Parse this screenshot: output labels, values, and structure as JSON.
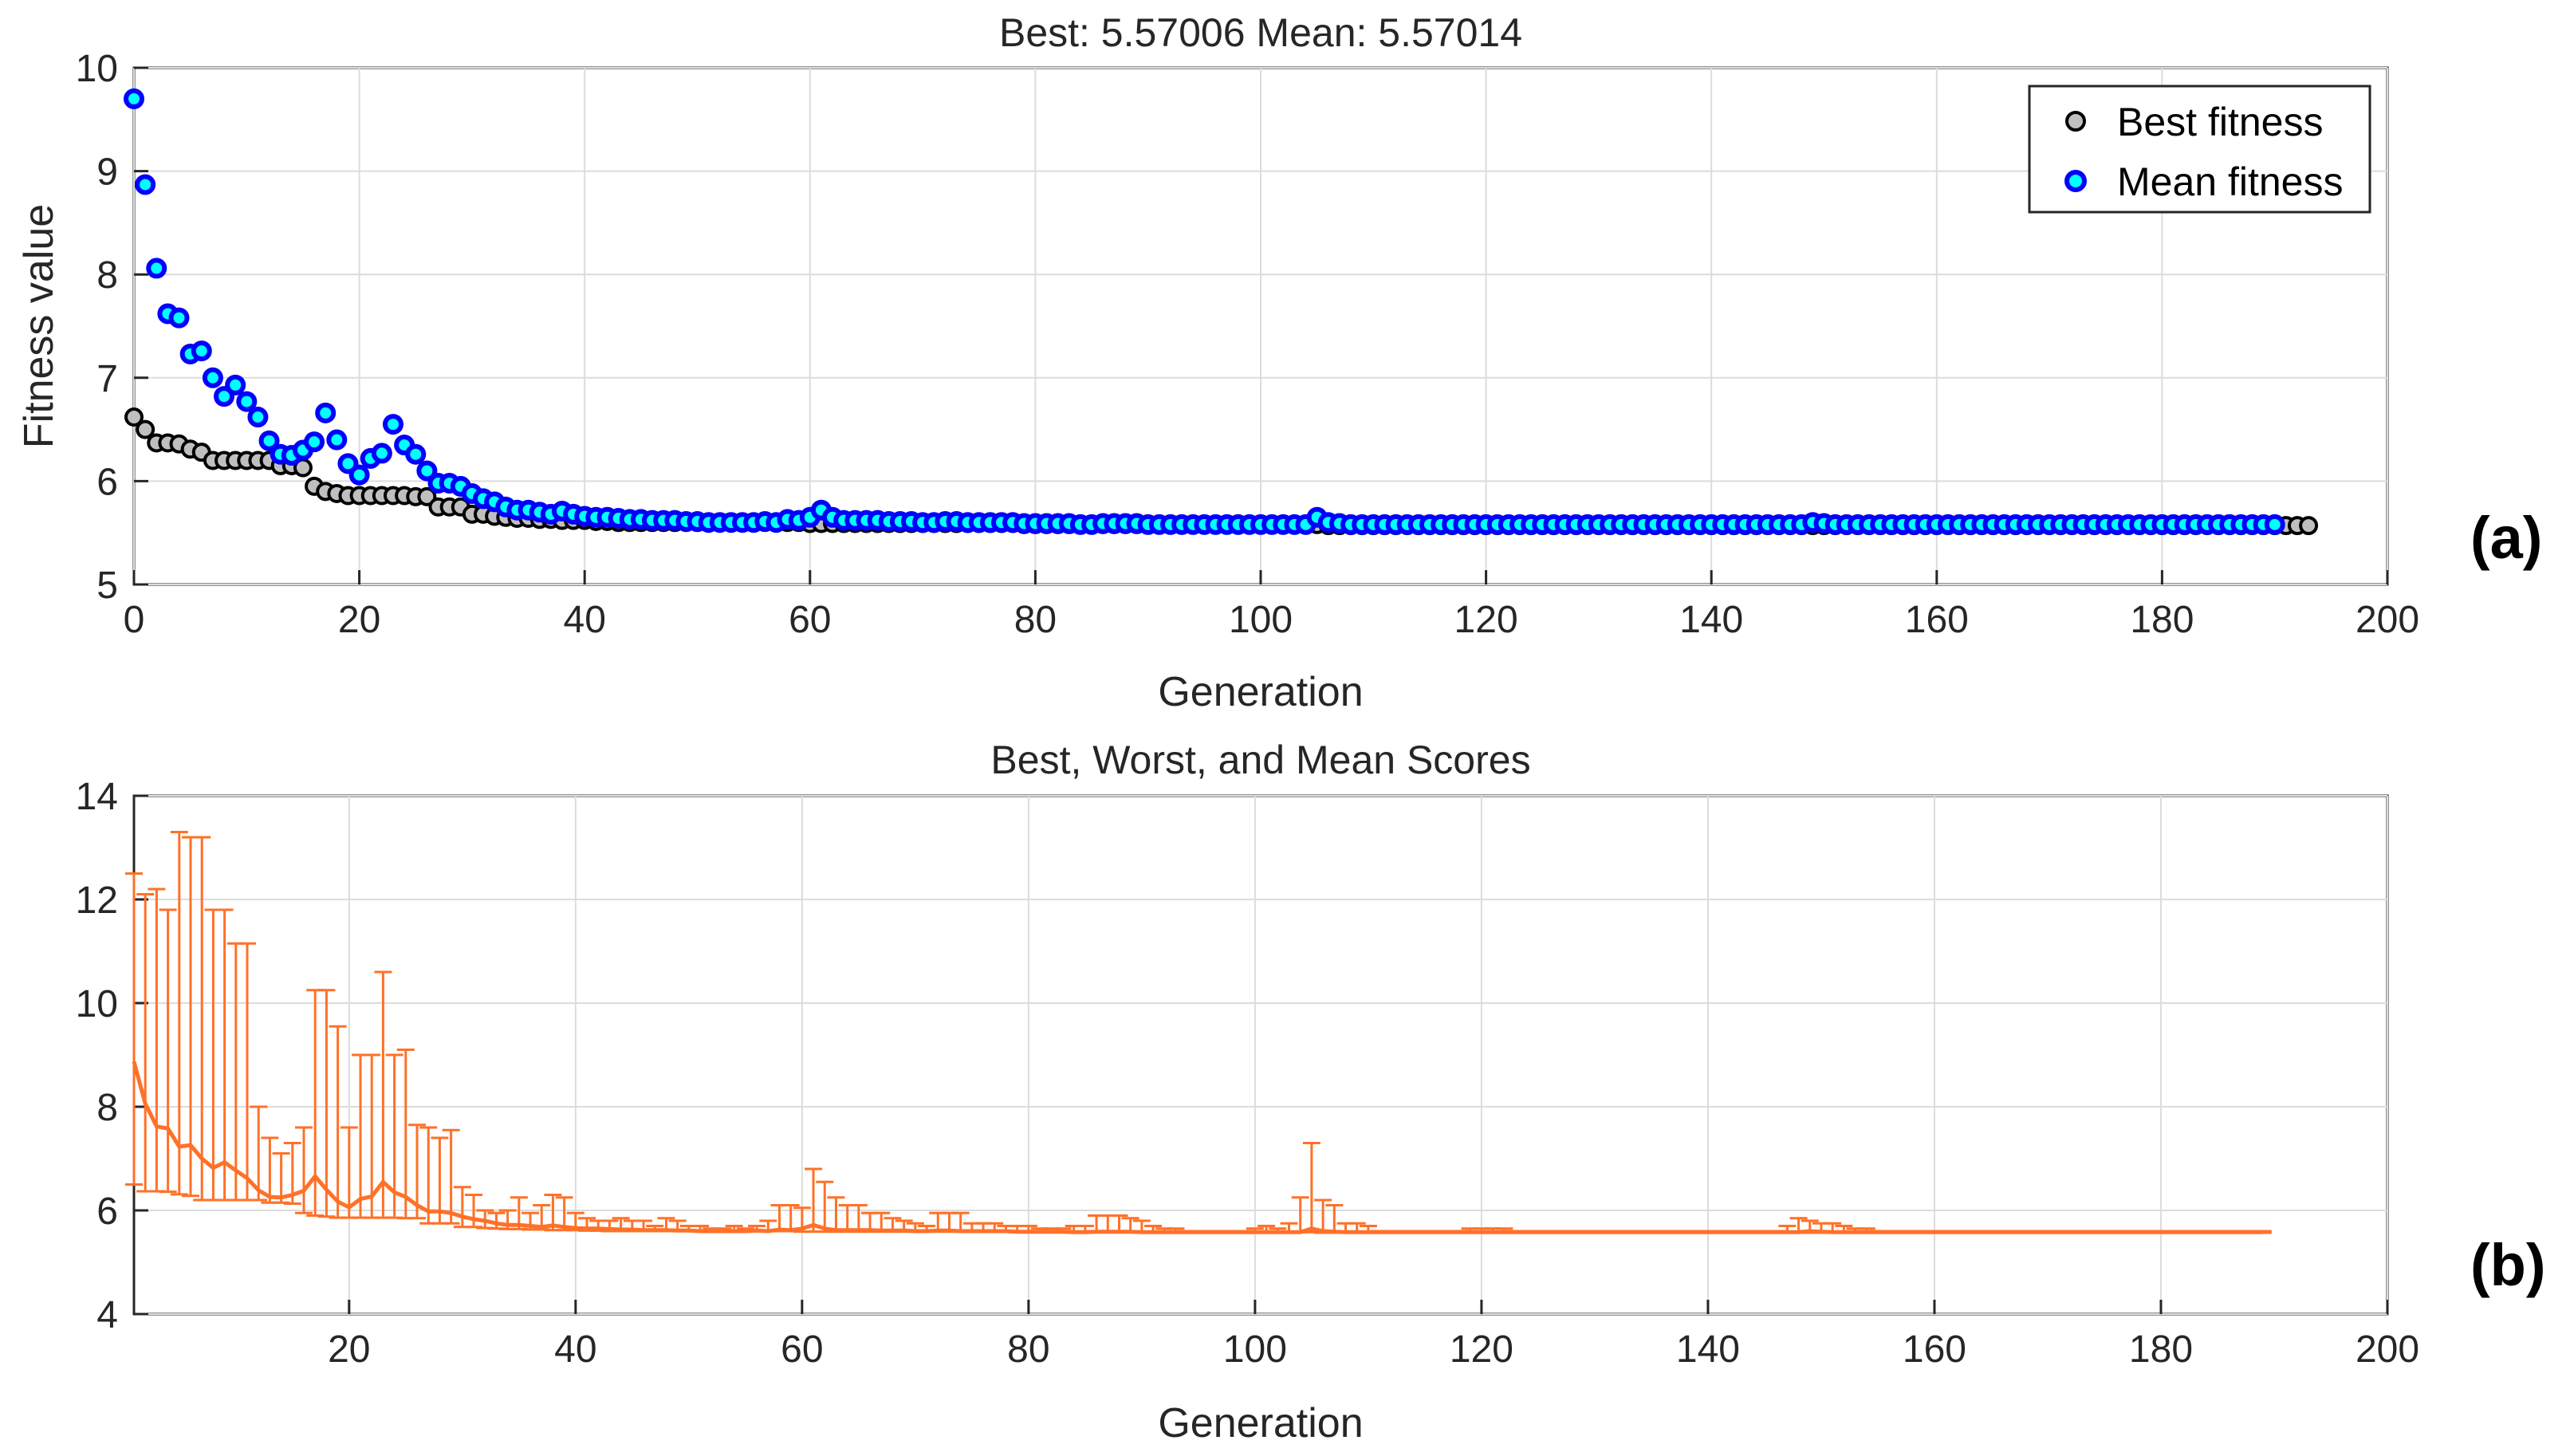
{
  "panels": {
    "a": {
      "label": "(a)"
    },
    "b": {
      "label": "(b)"
    }
  },
  "colors": {
    "best_marker_face": "#bfbfbf",
    "best_marker_edge": "#000000",
    "mean_marker_face": "#00ffff",
    "mean_marker_edge": "#0000ff",
    "range_line": "#ff7128"
  },
  "chart_data": [
    {
      "type": "scatter",
      "title": "Best: 5.57006 Mean: 5.57014",
      "xlabel": "Generation",
      "ylabel": "Fitness value",
      "xlim": [
        0,
        200
      ],
      "ylim": [
        5,
        10
      ],
      "xticks": [
        0,
        20,
        40,
        60,
        80,
        100,
        120,
        140,
        160,
        180,
        200
      ],
      "yticks": [
        5,
        6,
        7,
        8,
        9,
        10
      ],
      "grid": true,
      "legend_position": "top-right",
      "series": [
        {
          "name": "Best fitness",
          "marker": "circle",
          "x_start": 0,
          "x_step": 1,
          "values": [
            6.62,
            6.5,
            6.37,
            6.37,
            6.36,
            6.31,
            6.28,
            6.2,
            6.2,
            6.2,
            6.2,
            6.2,
            6.2,
            6.15,
            6.15,
            6.13,
            5.95,
            5.9,
            5.88,
            5.86,
            5.86,
            5.86,
            5.86,
            5.86,
            5.86,
            5.85,
            5.85,
            5.75,
            5.75,
            5.75,
            5.68,
            5.68,
            5.66,
            5.65,
            5.64,
            5.64,
            5.63,
            5.63,
            5.62,
            5.62,
            5.62,
            5.61,
            5.61,
            5.6,
            5.6,
            5.6,
            5.6,
            5.6,
            5.6,
            5.6,
            5.6,
            5.6,
            5.6,
            5.6,
            5.6,
            5.6,
            5.6,
            5.6,
            5.6,
            5.6,
            5.59,
            5.59,
            5.59,
            5.59,
            5.59,
            5.59,
            5.59,
            5.59,
            5.59,
            5.59,
            5.59,
            5.59,
            5.59,
            5.59,
            5.59,
            5.59,
            5.59,
            5.59,
            5.59,
            5.58,
            5.58,
            5.58,
            5.58,
            5.58,
            5.58,
            5.58,
            5.58,
            5.58,
            5.58,
            5.58,
            5.58,
            5.58,
            5.58,
            5.58,
            5.58,
            5.58,
            5.58,
            5.58,
            5.58,
            5.58,
            5.58,
            5.58,
            5.58,
            5.58,
            5.58,
            5.58,
            5.57,
            5.57,
            5.57,
            5.57,
            5.57,
            5.57,
            5.57,
            5.57,
            5.57,
            5.57,
            5.57,
            5.57,
            5.57,
            5.57,
            5.57,
            5.57,
            5.57,
            5.57,
            5.57,
            5.57,
            5.57,
            5.57,
            5.57,
            5.57,
            5.57,
            5.57,
            5.57,
            5.57,
            5.57,
            5.57,
            5.57,
            5.57,
            5.57,
            5.57,
            5.57,
            5.57,
            5.57,
            5.57,
            5.57,
            5.57,
            5.57,
            5.57,
            5.57,
            5.57,
            5.57,
            5.57,
            5.57,
            5.57,
            5.57,
            5.57,
            5.57,
            5.57,
            5.57,
            5.57,
            5.57,
            5.57,
            5.57,
            5.57,
            5.57,
            5.57,
            5.57,
            5.57,
            5.57,
            5.57,
            5.57,
            5.57,
            5.57,
            5.57,
            5.57,
            5.57,
            5.57,
            5.57,
            5.57,
            5.57,
            5.57,
            5.57,
            5.57,
            5.57,
            5.57,
            5.57,
            5.57,
            5.57,
            5.57,
            5.57,
            5.57,
            5.57,
            5.57,
            5.57
          ]
        },
        {
          "name": "Mean fitness",
          "marker": "circle",
          "x_start": 0,
          "x_step": 1,
          "values": [
            9.7,
            8.87,
            8.06,
            7.62,
            7.58,
            7.23,
            7.26,
            7.0,
            6.82,
            6.93,
            6.77,
            6.62,
            6.39,
            6.26,
            6.25,
            6.3,
            6.38,
            6.66,
            6.4,
            6.17,
            6.06,
            6.22,
            6.27,
            6.55,
            6.35,
            6.26,
            6.1,
            5.98,
            5.98,
            5.95,
            5.88,
            5.83,
            5.8,
            5.75,
            5.72,
            5.72,
            5.7,
            5.68,
            5.71,
            5.68,
            5.66,
            5.65,
            5.65,
            5.64,
            5.63,
            5.63,
            5.62,
            5.62,
            5.62,
            5.61,
            5.61,
            5.6,
            5.6,
            5.6,
            5.6,
            5.6,
            5.61,
            5.6,
            5.63,
            5.62,
            5.65,
            5.72,
            5.65,
            5.62,
            5.62,
            5.62,
            5.62,
            5.61,
            5.61,
            5.61,
            5.6,
            5.6,
            5.61,
            5.61,
            5.6,
            5.6,
            5.6,
            5.6,
            5.6,
            5.59,
            5.59,
            5.59,
            5.59,
            5.59,
            5.58,
            5.58,
            5.59,
            5.59,
            5.59,
            5.59,
            5.58,
            5.58,
            5.58,
            5.58,
            5.58,
            5.58,
            5.58,
            5.58,
            5.58,
            5.58,
            5.58,
            5.58,
            5.58,
            5.58,
            5.58,
            5.65,
            5.6,
            5.59,
            5.58,
            5.58,
            5.58,
            5.58,
            5.58,
            5.58,
            5.58,
            5.58,
            5.58,
            5.58,
            5.58,
            5.58,
            5.58,
            5.58,
            5.58,
            5.58,
            5.58,
            5.58,
            5.58,
            5.58,
            5.58,
            5.58,
            5.58,
            5.58,
            5.58,
            5.58,
            5.58,
            5.58,
            5.58,
            5.58,
            5.58,
            5.58,
            5.58,
            5.58,
            5.58,
            5.58,
            5.58,
            5.58,
            5.58,
            5.58,
            5.58,
            5.6,
            5.59,
            5.58,
            5.58,
            5.58,
            5.58,
            5.58,
            5.58,
            5.58,
            5.58,
            5.58,
            5.58,
            5.58,
            5.58,
            5.58,
            5.58,
            5.58,
            5.58,
            5.58,
            5.58,
            5.58,
            5.58,
            5.58,
            5.58,
            5.58,
            5.58,
            5.58,
            5.58,
            5.58,
            5.58,
            5.58,
            5.58,
            5.58,
            5.58,
            5.58,
            5.58,
            5.58,
            5.58,
            5.58,
            5.58,
            5.58,
            5.58
          ]
        }
      ]
    },
    {
      "type": "line",
      "title": "Best, Worst, and Mean Scores",
      "xlabel": "Generation",
      "ylabel": "",
      "xlim": [
        1,
        200
      ],
      "ylim": [
        4,
        14
      ],
      "xticks": [
        20,
        40,
        60,
        80,
        100,
        120,
        140,
        160,
        180,
        200
      ],
      "yticks": [
        4,
        6,
        8,
        10,
        12,
        14
      ],
      "grid": true,
      "x_start": 1,
      "x_step": 1,
      "mean": [
        8.87,
        8.06,
        7.62,
        7.58,
        7.23,
        7.26,
        7.0,
        6.82,
        6.93,
        6.77,
        6.62,
        6.39,
        6.26,
        6.25,
        6.3,
        6.38,
        6.66,
        6.4,
        6.17,
        6.06,
        6.22,
        6.27,
        6.55,
        6.35,
        6.26,
        6.1,
        5.98,
        5.98,
        5.95,
        5.88,
        5.83,
        5.8,
        5.75,
        5.72,
        5.72,
        5.7,
        5.68,
        5.71,
        5.68,
        5.66,
        5.65,
        5.65,
        5.64,
        5.63,
        5.63,
        5.62,
        5.62,
        5.62,
        5.61,
        5.61,
        5.6,
        5.6,
        5.6,
        5.6,
        5.6,
        5.61,
        5.6,
        5.63,
        5.62,
        5.65,
        5.72,
        5.65,
        5.62,
        5.62,
        5.62,
        5.62,
        5.61,
        5.61,
        5.61,
        5.6,
        5.6,
        5.61,
        5.61,
        5.6,
        5.6,
        5.6,
        5.6,
        5.6,
        5.59,
        5.59,
        5.59,
        5.59,
        5.59,
        5.58,
        5.58,
        5.59,
        5.59,
        5.59,
        5.59,
        5.58,
        5.58,
        5.58,
        5.58,
        5.58,
        5.58,
        5.58,
        5.58,
        5.58,
        5.58,
        5.58,
        5.58,
        5.58,
        5.58,
        5.58,
        5.65,
        5.6,
        5.59,
        5.58,
        5.58,
        5.58,
        5.58,
        5.58,
        5.58,
        5.58,
        5.58,
        5.58,
        5.58,
        5.58,
        5.58,
        5.58,
        5.58,
        5.58,
        5.58,
        5.58,
        5.58,
        5.58,
        5.58,
        5.58,
        5.58,
        5.58,
        5.58,
        5.58,
        5.58,
        5.58,
        5.58,
        5.58,
        5.58,
        5.58,
        5.58,
        5.58,
        5.58,
        5.58,
        5.58,
        5.58,
        5.58,
        5.58,
        5.58,
        5.58,
        5.6,
        5.59,
        5.58,
        5.58,
        5.58,
        5.58,
        5.58,
        5.58,
        5.58,
        5.58,
        5.58,
        5.58,
        5.58,
        5.58,
        5.58,
        5.58,
        5.58,
        5.58,
        5.58,
        5.58,
        5.58,
        5.58,
        5.58,
        5.58,
        5.58,
        5.58,
        5.58,
        5.58,
        5.58,
        5.58,
        5.58,
        5.58,
        5.58,
        5.58,
        5.58,
        5.58,
        5.58,
        5.58,
        5.58,
        5.58,
        5.58
      ],
      "best": [
        6.5,
        6.37,
        6.37,
        6.36,
        6.31,
        6.28,
        6.2,
        6.2,
        6.2,
        6.2,
        6.2,
        6.2,
        6.15,
        6.15,
        6.13,
        5.95,
        5.9,
        5.88,
        5.86,
        5.86,
        5.86,
        5.86,
        5.86,
        5.86,
        5.85,
        5.85,
        5.75,
        5.75,
        5.75,
        5.68,
        5.68,
        5.66,
        5.65,
        5.64,
        5.64,
        5.63,
        5.63,
        5.62,
        5.62,
        5.62,
        5.61,
        5.61,
        5.6,
        5.6,
        5.6,
        5.6,
        5.6,
        5.6,
        5.6,
        5.6,
        5.6,
        5.6,
        5.6,
        5.6,
        5.6,
        5.6,
        5.6,
        5.6,
        5.6,
        5.59,
        5.59,
        5.59,
        5.59,
        5.59,
        5.59,
        5.59,
        5.59,
        5.59,
        5.59,
        5.59,
        5.59,
        5.59,
        5.59,
        5.59,
        5.59,
        5.59,
        5.59,
        5.59,
        5.58,
        5.58,
        5.58,
        5.58,
        5.58,
        5.58,
        5.58,
        5.58,
        5.58,
        5.58,
        5.58,
        5.58,
        5.58,
        5.58,
        5.58,
        5.58,
        5.58,
        5.58,
        5.58,
        5.58,
        5.58,
        5.58,
        5.58,
        5.58,
        5.58,
        5.58,
        5.58,
        5.57,
        5.57,
        5.57,
        5.57,
        5.57,
        5.57,
        5.57,
        5.57,
        5.57,
        5.57,
        5.57,
        5.57,
        5.57,
        5.57,
        5.57,
        5.57,
        5.57,
        5.57,
        5.57,
        5.57,
        5.57,
        5.57,
        5.57,
        5.57,
        5.57,
        5.57,
        5.57,
        5.57,
        5.57,
        5.57,
        5.57,
        5.57,
        5.57,
        5.57,
        5.57,
        5.57,
        5.57,
        5.57,
        5.57,
        5.57,
        5.57,
        5.57,
        5.57,
        5.57,
        5.57,
        5.57,
        5.57,
        5.57,
        5.57,
        5.57,
        5.57,
        5.57,
        5.57,
        5.57,
        5.57,
        5.57,
        5.57,
        5.57,
        5.57,
        5.57,
        5.57,
        5.57,
        5.57,
        5.57,
        5.57,
        5.57,
        5.57,
        5.57,
        5.57,
        5.57,
        5.57,
        5.57,
        5.57,
        5.57,
        5.57,
        5.57,
        5.57,
        5.57,
        5.57,
        5.57,
        5.57,
        5.57,
        5.57,
        5.57,
        5.57,
        5.57,
        5.57
      ],
      "worst": [
        12.5,
        12.1,
        12.2,
        11.8,
        13.3,
        13.2,
        13.2,
        11.8,
        11.8,
        11.15,
        11.15,
        8.0,
        7.4,
        7.1,
        7.3,
        7.6,
        10.25,
        10.25,
        9.55,
        7.6,
        9.0,
        9.0,
        10.6,
        9.0,
        9.1,
        7.65,
        7.6,
        7.4,
        7.55,
        6.45,
        6.3,
        6.0,
        5.95,
        6.0,
        6.25,
        5.95,
        6.1,
        6.3,
        6.25,
        5.95,
        5.85,
        5.8,
        5.8,
        5.85,
        5.8,
        5.8,
        5.7,
        5.85,
        5.8,
        5.7,
        5.7,
        5.65,
        5.65,
        5.7,
        5.65,
        5.7,
        5.8,
        6.1,
        6.1,
        6.05,
        6.8,
        6.55,
        6.25,
        6.1,
        6.1,
        5.95,
        5.95,
        5.85,
        5.8,
        5.75,
        5.7,
        5.95,
        5.95,
        5.95,
        5.75,
        5.75,
        5.75,
        5.7,
        5.7,
        5.7,
        5.65,
        5.65,
        5.65,
        5.7,
        5.7,
        5.9,
        5.9,
        5.9,
        5.85,
        5.8,
        5.7,
        5.65,
        5.65,
        5.6,
        5.6,
        5.6,
        5.6,
        5.6,
        5.6,
        5.65,
        5.7,
        5.65,
        5.75,
        6.25,
        7.3,
        6.2,
        6.1,
        5.75,
        5.75,
        5.7,
        5.6,
        5.6,
        5.6,
        5.6,
        5.6,
        5.6,
        5.6,
        5.6,
        5.65,
        5.65,
        5.65,
        5.65,
        5.6,
        5.6,
        5.6,
        5.6,
        5.6,
        5.6,
        5.6,
        5.6,
        5.6,
        5.6,
        5.6,
        5.6,
        5.6,
        5.6,
        5.6,
        5.6,
        5.6,
        5.6,
        5.6,
        5.6,
        5.6,
        5.6,
        5.6,
        5.6,
        5.7,
        5.85,
        5.8,
        5.75,
        5.75,
        5.7,
        5.65,
        5.65,
        5.6,
        5.6,
        5.6,
        5.6,
        5.6,
        5.6,
        5.6,
        5.6,
        5.6,
        5.6,
        5.6,
        5.6,
        5.6,
        5.6,
        5.6,
        5.6,
        5.6,
        5.6,
        5.6,
        5.6,
        5.6,
        5.6,
        5.6,
        5.6,
        5.6,
        5.6,
        5.6,
        5.6,
        5.6,
        5.6,
        5.6,
        5.6,
        5.6,
        5.6,
        5.6,
        5.6,
        5.6,
        5.6
      ]
    }
  ]
}
